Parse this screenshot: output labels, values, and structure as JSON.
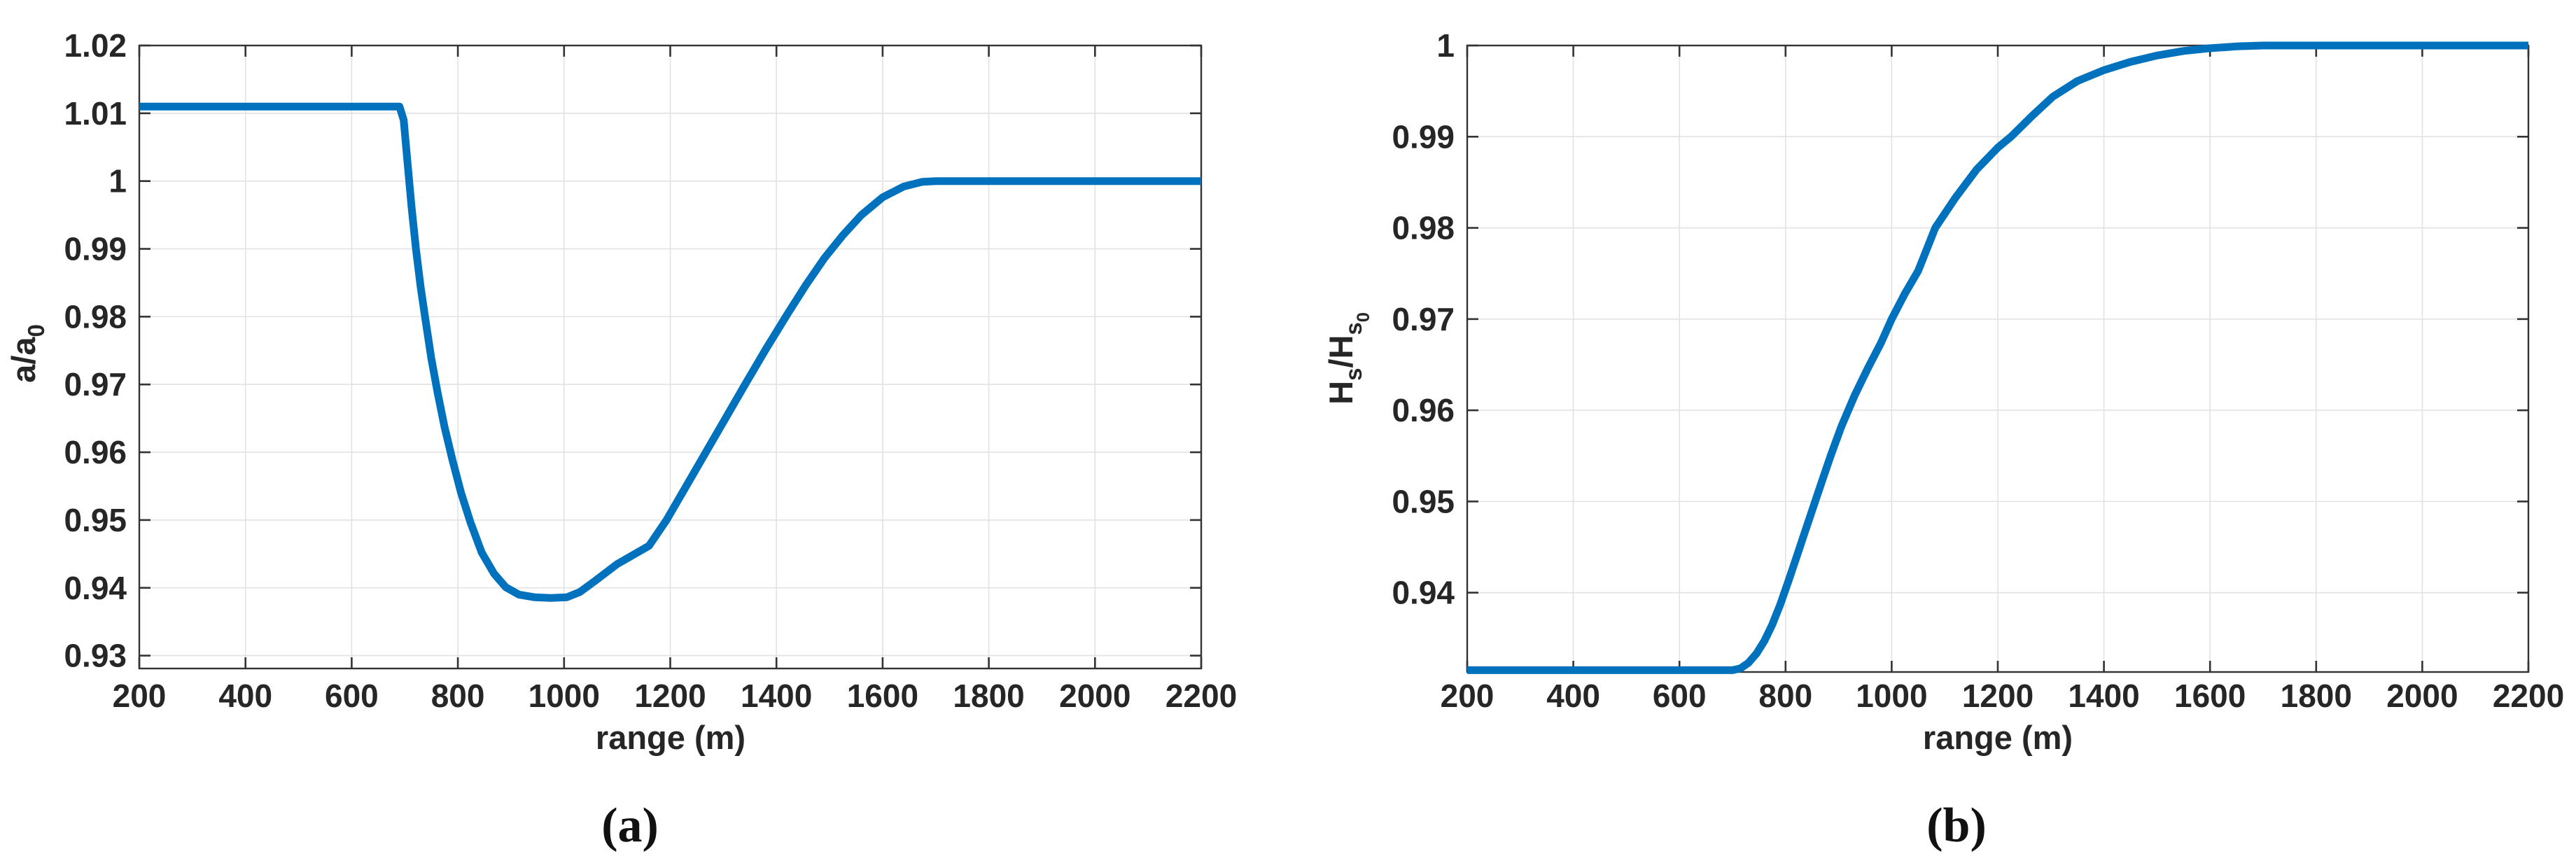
{
  "figure": {
    "caption_a": "(a)",
    "caption_b": "(b)"
  },
  "colors": {
    "line_blue": "#0072BD",
    "axis_gray": "#333333",
    "grid_gray": "#e2e2e2",
    "text_dark": "#262626",
    "background": "#ffffff"
  },
  "chart_data": [
    {
      "type": "line",
      "panel": "a",
      "xlabel": "range (m)",
      "ylabel": "a/a_0",
      "xlim": [
        200,
        2200
      ],
      "ylim": [
        0.9281,
        1.02
      ],
      "x_ticks": [
        200,
        400,
        600,
        800,
        1000,
        1200,
        1400,
        1600,
        1800,
        2000,
        2200
      ],
      "x_tick_labels": [
        "200",
        "400",
        "600",
        "800",
        "1000",
        "1200",
        "1400",
        "1600",
        "1800",
        "2000",
        "2200"
      ],
      "y_ticks": [
        0.93,
        0.94,
        0.95,
        0.96,
        0.97,
        0.98,
        0.99,
        1.0,
        1.01,
        1.02
      ],
      "y_tick_labels": [
        "0.93",
        "0.94",
        "0.95",
        "0.96",
        "0.97",
        "0.98",
        "0.99",
        "1",
        "1.01",
        "1.02"
      ],
      "grid": true,
      "legend": null,
      "series": [
        {
          "points": [
            [
              200,
              1.011
            ],
            [
              300,
              1.011
            ],
            [
              400,
              1.011
            ],
            [
              500,
              1.011
            ],
            [
              600,
              1.011
            ],
            [
              660,
              1.011
            ],
            [
              690,
              1.011
            ],
            [
              698,
              1.009
            ],
            [
              706,
              1.002
            ],
            [
              713,
              0.996
            ],
            [
              721,
              0.99
            ],
            [
              730,
              0.9843
            ],
            [
              740,
              0.979
            ],
            [
              750,
              0.9738
            ],
            [
              762,
              0.9687
            ],
            [
              775,
              0.9637
            ],
            [
              790,
              0.9588
            ],
            [
              806,
              0.954
            ],
            [
              824,
              0.9496
            ],
            [
              845,
              0.9452
            ],
            [
              868,
              0.9421
            ],
            [
              890,
              0.9401
            ],
            [
              915,
              0.939
            ],
            [
              945,
              0.9386
            ],
            [
              975,
              0.9385
            ],
            [
              1005,
              0.9386
            ],
            [
              1030,
              0.9394
            ],
            [
              1058,
              0.941
            ],
            [
              1100,
              0.9435
            ],
            [
              1160,
              0.9462
            ],
            [
              1193,
              0.95
            ],
            [
              1230,
              0.955
            ],
            [
              1267,
              0.96
            ],
            [
              1304,
              0.965
            ],
            [
              1341,
              0.97
            ],
            [
              1380,
              0.9752
            ],
            [
              1420,
              0.9803
            ],
            [
              1455,
              0.9846
            ],
            [
              1490,
              0.9886
            ],
            [
              1525,
              0.992
            ],
            [
              1560,
              0.995
            ],
            [
              1600,
              0.9976
            ],
            [
              1640,
              0.9992
            ],
            [
              1675,
              0.9999
            ],
            [
              1700,
              1.0
            ],
            [
              1800,
              1.0
            ],
            [
              1900,
              1.0
            ],
            [
              2000,
              1.0
            ],
            [
              2100,
              1.0
            ],
            [
              2200,
              1.0
            ]
          ]
        }
      ]
    },
    {
      "type": "line",
      "panel": "b",
      "xlabel": "range (m)",
      "ylabel": "H_s/H_s_0",
      "xlim": [
        200,
        2200
      ],
      "ylim": [
        0.9313,
        1.0
      ],
      "x_ticks": [
        200,
        400,
        600,
        800,
        1000,
        1200,
        1400,
        1600,
        1800,
        2000,
        2200
      ],
      "x_tick_labels": [
        "200",
        "400",
        "600",
        "800",
        "1000",
        "1200",
        "1400",
        "1600",
        "1800",
        "2000",
        "2200"
      ],
      "y_ticks": [
        0.94,
        0.95,
        0.96,
        0.97,
        0.98,
        0.99,
        1.0
      ],
      "y_tick_labels": [
        "0.94",
        "0.95",
        "0.96",
        "0.97",
        "0.98",
        "0.99",
        "1"
      ],
      "grid": true,
      "legend": null,
      "series": [
        {
          "points": [
            [
              200,
              0.9315
            ],
            [
              300,
              0.9315
            ],
            [
              400,
              0.9315
            ],
            [
              500,
              0.9315
            ],
            [
              600,
              0.9315
            ],
            [
              700,
              0.9315
            ],
            [
              715,
              0.9317
            ],
            [
              730,
              0.9323
            ],
            [
              745,
              0.9333
            ],
            [
              760,
              0.9347
            ],
            [
              775,
              0.9365
            ],
            [
              790,
              0.9387
            ],
            [
              805,
              0.9412
            ],
            [
              820,
              0.9438
            ],
            [
              835,
              0.9464
            ],
            [
              850,
              0.949
            ],
            [
              865,
              0.9516
            ],
            [
              885,
              0.955
            ],
            [
              905,
              0.9582
            ],
            [
              930,
              0.9616
            ],
            [
              955,
              0.9646
            ],
            [
              980,
              0.9674
            ],
            [
              1000,
              0.97
            ],
            [
              1025,
              0.9728
            ],
            [
              1050,
              0.9753
            ],
            [
              1082,
              0.98
            ],
            [
              1120,
              0.9833
            ],
            [
              1160,
              0.9864
            ],
            [
              1200,
              0.9888
            ],
            [
              1225,
              0.99
            ],
            [
              1265,
              0.9923
            ],
            [
              1304,
              0.9944
            ],
            [
              1350,
              0.9961
            ],
            [
              1400,
              0.9973
            ],
            [
              1450,
              0.9982
            ],
            [
              1500,
              0.9989
            ],
            [
              1550,
              0.9994
            ],
            [
              1600,
              0.9997
            ],
            [
              1650,
              0.9999
            ],
            [
              1700,
              1.0
            ],
            [
              1800,
              1.0
            ],
            [
              1900,
              1.0
            ],
            [
              2000,
              1.0
            ],
            [
              2100,
              1.0
            ],
            [
              2200,
              1.0
            ]
          ]
        }
      ]
    }
  ]
}
